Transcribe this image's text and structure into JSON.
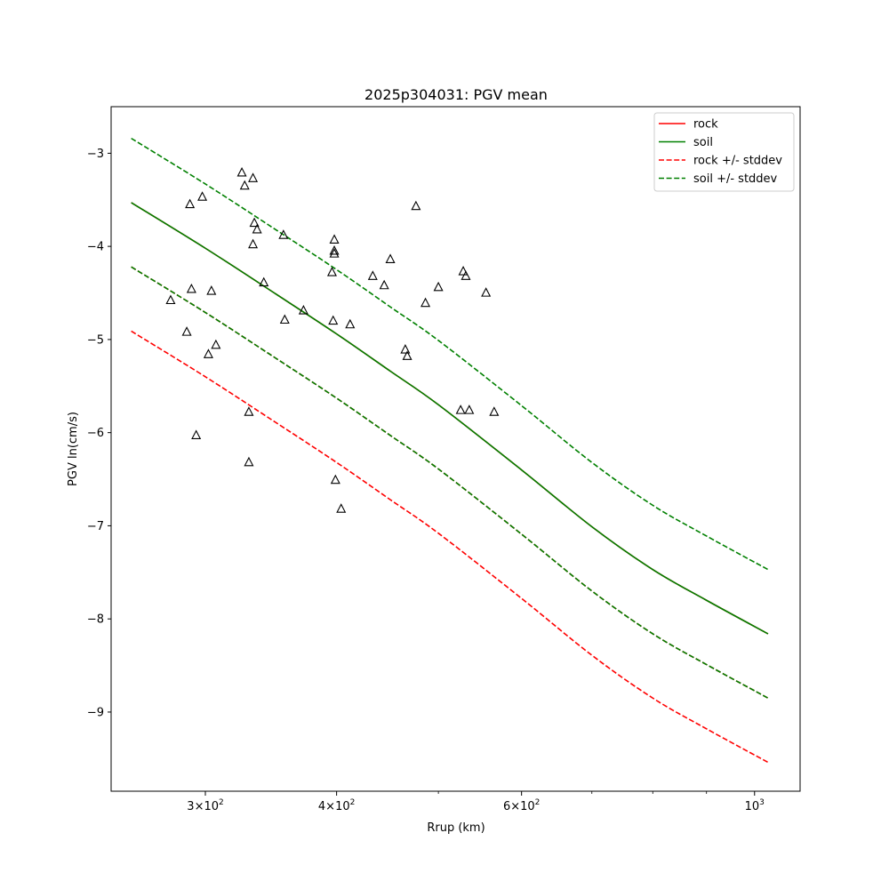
{
  "chart_data": {
    "type": "scatter",
    "title": "2025p304031: PGV mean",
    "xlabel": "Rrup (km)",
    "ylabel": "PGV ln(cm/s)",
    "xscale": "log",
    "xlim": [
      244,
      1105
    ],
    "ylim": [
      -9.85,
      -2.5
    ],
    "x_ticks": [
      {
        "value": 300,
        "mantissa": "3",
        "exponent": "2"
      },
      {
        "value": 400,
        "mantissa": "4",
        "exponent": "2"
      },
      {
        "value": 600,
        "mantissa": "6",
        "exponent": "2"
      },
      {
        "value": 1000,
        "mantissa": "10",
        "exponent": "3",
        "plain": true
      }
    ],
    "x_minor_ticks": [
      500,
      700,
      800,
      900
    ],
    "y_ticks": [
      {
        "value": -3,
        "label": "−3"
      },
      {
        "value": -4,
        "label": "−4"
      },
      {
        "value": -5,
        "label": "−5"
      },
      {
        "value": -6,
        "label": "−6"
      },
      {
        "value": -7,
        "label": "−7"
      },
      {
        "value": -8,
        "label": "−8"
      },
      {
        "value": -9,
        "label": "−9"
      }
    ],
    "grid": false,
    "legend_position": "top-right",
    "legend": [
      {
        "label": "rock",
        "color": "#ff0000",
        "dashed": false
      },
      {
        "label": "soil",
        "color": "#008000",
        "dashed": false
      },
      {
        "label": "rock +/- stddev",
        "color": "#ff0000",
        "dashed": true
      },
      {
        "label": "soil +/- stddev",
        "color": "#008000",
        "dashed": true
      }
    ],
    "series": [
      {
        "name": "rock",
        "color": "#ff0000",
        "dashed": false,
        "x": [
          255,
          300,
          350,
          400,
          450,
          500,
          600,
          700,
          800,
          900,
          1030
        ],
        "y": [
          -3.53,
          -4.02,
          -4.51,
          -4.94,
          -5.34,
          -5.7,
          -6.4,
          -7.01,
          -7.47,
          -7.8,
          -8.16
        ]
      },
      {
        "name": "soil",
        "color": "#008000",
        "dashed": false,
        "x": [
          255,
          300,
          350,
          400,
          450,
          500,
          600,
          700,
          800,
          900,
          1030
        ],
        "y": [
          -3.53,
          -4.02,
          -4.51,
          -4.94,
          -5.34,
          -5.7,
          -6.4,
          -7.01,
          -7.47,
          -7.8,
          -8.16
        ]
      },
      {
        "name": "rock +/- stddev",
        "color": "#ff0000",
        "dashed": true,
        "x": [
          255,
          300,
          350,
          400,
          450,
          500,
          600,
          700,
          800,
          900,
          1030
        ],
        "y": [
          -4.22,
          -4.71,
          -5.2,
          -5.63,
          -6.03,
          -6.39,
          -7.09,
          -7.7,
          -8.16,
          -8.49,
          -8.85
        ]
      },
      {
        "name": "soil +/- stddev",
        "color": "#008000",
        "dashed": true,
        "x": [
          255,
          300,
          350,
          400,
          450,
          500,
          600,
          700,
          800,
          900,
          1030
        ],
        "y": [
          -4.22,
          -4.71,
          -5.2,
          -5.63,
          -6.03,
          -6.39,
          -7.09,
          -7.7,
          -8.16,
          -8.49,
          -8.85
        ]
      },
      {
        "name": "rock +/- stddev",
        "color": "#ff0000",
        "dashed": true,
        "x": [
          255,
          300,
          350,
          400,
          450,
          500,
          600,
          700,
          800,
          900,
          1030
        ],
        "y": [
          -4.91,
          -5.4,
          -5.89,
          -6.32,
          -6.72,
          -7.08,
          -7.78,
          -8.39,
          -8.85,
          -9.18,
          -9.54
        ]
      },
      {
        "name": "soil +/- stddev",
        "color": "#008000",
        "dashed": true,
        "x": [
          255,
          300,
          350,
          400,
          450,
          500,
          600,
          700,
          800,
          900,
          1030
        ],
        "y": [
          -2.84,
          -3.33,
          -3.82,
          -4.25,
          -4.65,
          -5.01,
          -5.71,
          -6.32,
          -6.78,
          -7.11,
          -7.47
        ]
      }
    ],
    "observations": {
      "marker": "triangle",
      "x": [
        278,
        288,
        290,
        291,
        294,
        298,
        302,
        304,
        307,
        325,
        327,
        330,
        330,
        333,
        333,
        334,
        336,
        341,
        356,
        357,
        372,
        396,
        397,
        398,
        398,
        398,
        399,
        404,
        412,
        433,
        444,
        450,
        465,
        467,
        476,
        486,
        500,
        525,
        528,
        531,
        535,
        555,
        565
      ],
      "y": [
        -4.58,
        -4.92,
        -3.55,
        -4.46,
        -6.03,
        -3.47,
        -5.16,
        -4.48,
        -5.06,
        -3.21,
        -3.35,
        -5.78,
        -6.32,
        -3.98,
        -3.27,
        -3.75,
        -3.82,
        -4.39,
        -3.88,
        -4.79,
        -4.69,
        -4.28,
        -4.8,
        -4.05,
        -4.08,
        -3.93,
        -6.51,
        -6.82,
        -4.84,
        -4.32,
        -4.42,
        -4.14,
        -5.11,
        -5.18,
        -3.57,
        -4.61,
        -4.44,
        -5.76,
        -4.27,
        -4.32,
        -5.76,
        -4.5,
        -5.78
      ]
    }
  }
}
